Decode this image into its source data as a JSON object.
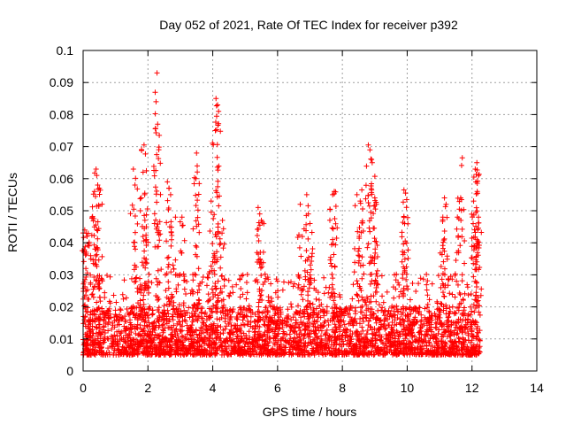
{
  "chart_data": {
    "type": "scatter",
    "title": "Day 052 of 2021, Rate Of TEC Index for receiver p392",
    "xlabel": "GPS time / hours",
    "ylabel": "ROTI / TECUs",
    "xlim": [
      0,
      14
    ],
    "ylim": [
      0,
      0.1
    ],
    "x_ticks": [
      0,
      2,
      4,
      6,
      8,
      10,
      12,
      14
    ],
    "y_ticks": [
      0,
      0.01,
      0.02,
      0.03,
      0.04,
      0.05,
      0.06,
      0.07,
      0.08,
      0.09,
      0.1
    ],
    "x_tick_labels": [
      "0",
      "2",
      "4",
      "6",
      "8",
      "10",
      "12",
      "14"
    ],
    "y_tick_labels": [
      "0",
      "0.01",
      "0.02",
      "0.03",
      "0.04",
      "0.05",
      "0.06",
      "0.07",
      "0.08",
      "0.09",
      "0.1"
    ],
    "grid": true,
    "marker": "+",
    "marker_color": "#ff0000",
    "x_data_range": [
      0,
      12.25
    ],
    "typical_roti_band": [
      0.005,
      0.02
    ],
    "series": [
      {
        "name": "p392",
        "notable_points": [
          {
            "x": 0.05,
            "y": 0.044
          },
          {
            "x": 0.1,
            "y": 0.043
          },
          {
            "x": 0.12,
            "y": 0.042
          },
          {
            "x": 0.4,
            "y": 0.063
          },
          {
            "x": 0.42,
            "y": 0.061
          },
          {
            "x": 0.45,
            "y": 0.058
          },
          {
            "x": 0.5,
            "y": 0.057
          },
          {
            "x": 0.35,
            "y": 0.056
          },
          {
            "x": 0.28,
            "y": 0.048
          },
          {
            "x": 1.55,
            "y": 0.063
          },
          {
            "x": 1.6,
            "y": 0.058
          },
          {
            "x": 1.85,
            "y": 0.062
          },
          {
            "x": 1.9,
            "y": 0.055
          },
          {
            "x": 1.88,
            "y": 0.0705
          },
          {
            "x": 1.95,
            "y": 0.045
          },
          {
            "x": 2.28,
            "y": 0.093
          },
          {
            "x": 2.25,
            "y": 0.084
          },
          {
            "x": 2.3,
            "y": 0.077
          },
          {
            "x": 2.35,
            "y": 0.0735
          },
          {
            "x": 2.6,
            "y": 0.059
          },
          {
            "x": 2.65,
            "y": 0.057
          },
          {
            "x": 2.7,
            "y": 0.055
          },
          {
            "x": 2.85,
            "y": 0.048
          },
          {
            "x": 3.05,
            "y": 0.048
          },
          {
            "x": 3.5,
            "y": 0.068
          },
          {
            "x": 3.52,
            "y": 0.064
          },
          {
            "x": 3.48,
            "y": 0.06
          },
          {
            "x": 4.1,
            "y": 0.085
          },
          {
            "x": 4.15,
            "y": 0.083
          },
          {
            "x": 4.18,
            "y": 0.081
          },
          {
            "x": 4.12,
            "y": 0.0795
          },
          {
            "x": 4.08,
            "y": 0.075
          },
          {
            "x": 3.95,
            "y": 0.053
          },
          {
            "x": 4.3,
            "y": 0.047
          },
          {
            "x": 5.4,
            "y": 0.051
          },
          {
            "x": 5.45,
            "y": 0.049
          },
          {
            "x": 5.5,
            "y": 0.047
          },
          {
            "x": 6.7,
            "y": 0.052
          },
          {
            "x": 6.9,
            "y": 0.055
          },
          {
            "x": 6.95,
            "y": 0.049
          },
          {
            "x": 7.0,
            "y": 0.046
          },
          {
            "x": 7.7,
            "y": 0.055
          },
          {
            "x": 7.75,
            "y": 0.056
          },
          {
            "x": 7.7,
            "y": 0.041
          },
          {
            "x": 8.45,
            "y": 0.055
          },
          {
            "x": 8.55,
            "y": 0.053
          },
          {
            "x": 8.6,
            "y": 0.0565
          },
          {
            "x": 8.8,
            "y": 0.0705
          },
          {
            "x": 8.85,
            "y": 0.069
          },
          {
            "x": 8.9,
            "y": 0.066
          },
          {
            "x": 8.92,
            "y": 0.065
          },
          {
            "x": 9.0,
            "y": 0.054
          },
          {
            "x": 9.05,
            "y": 0.052
          },
          {
            "x": 9.9,
            "y": 0.0565
          },
          {
            "x": 9.95,
            "y": 0.0555
          },
          {
            "x": 9.92,
            "y": 0.046
          },
          {
            "x": 11.15,
            "y": 0.054
          },
          {
            "x": 11.2,
            "y": 0.052
          },
          {
            "x": 11.1,
            "y": 0.048
          },
          {
            "x": 11.55,
            "y": 0.048
          },
          {
            "x": 11.7,
            "y": 0.0665
          },
          {
            "x": 11.65,
            "y": 0.054
          },
          {
            "x": 12.1,
            "y": 0.063
          },
          {
            "x": 12.15,
            "y": 0.065
          },
          {
            "x": 12.2,
            "y": 0.061
          },
          {
            "x": 12.12,
            "y": 0.059
          },
          {
            "x": 12.05,
            "y": 0.053
          },
          {
            "x": 12.2,
            "y": 0.048
          },
          {
            "x": 12.15,
            "y": 0.041
          }
        ]
      }
    ]
  }
}
